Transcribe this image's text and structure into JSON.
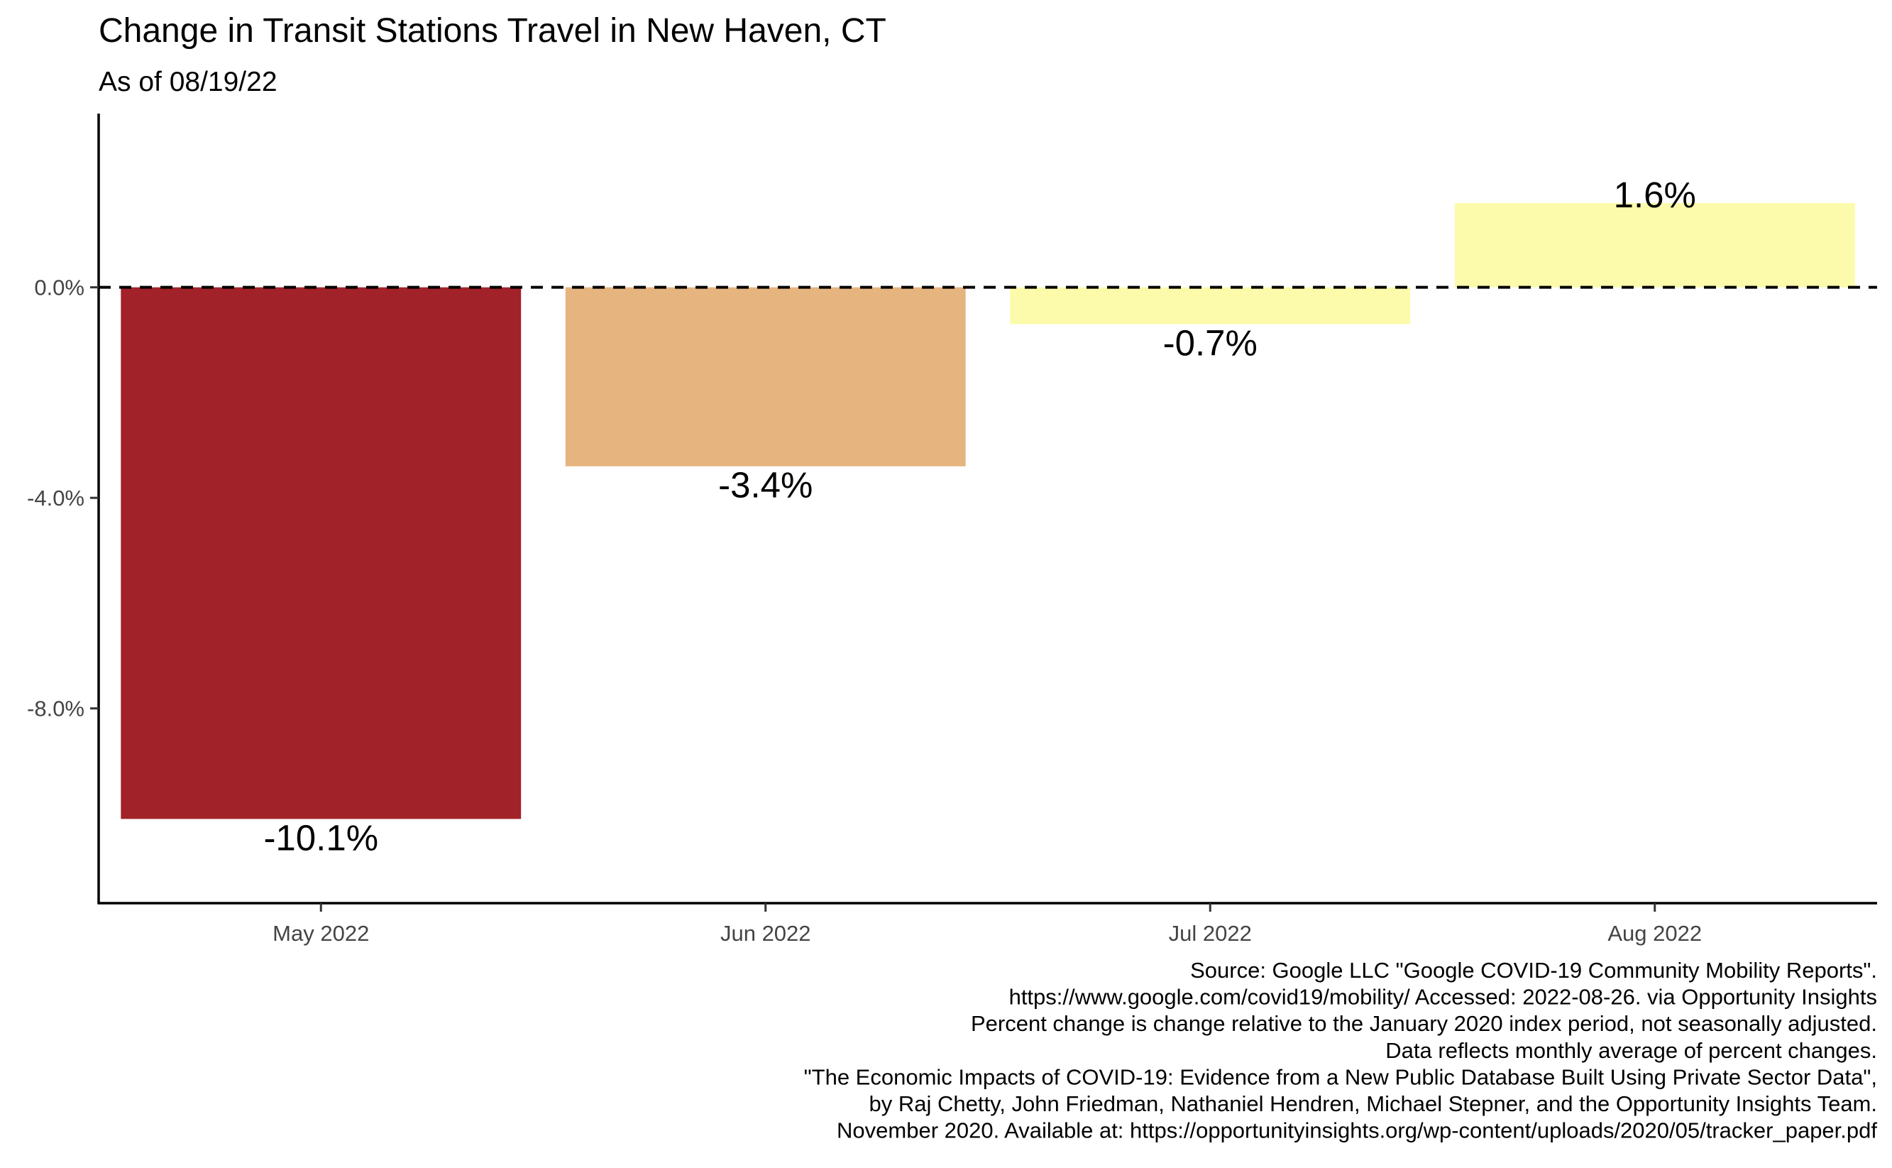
{
  "chart_data": {
    "type": "bar",
    "title": "Change in Transit Stations Travel in New Haven, CT",
    "subtitle": "As of 08/19/22",
    "xlabel": "",
    "ylabel": "",
    "categories": [
      "May 2022",
      "Jun 2022",
      "Jul 2022",
      "Aug 2022"
    ],
    "values": [
      -10.1,
      -3.4,
      -0.7,
      1.6
    ],
    "data_labels": [
      "-10.1%",
      "-3.4%",
      "-0.7%",
      "1.6%"
    ],
    "colors": [
      "#a12228",
      "#e6b47f",
      "#fbfbab",
      "#fbfbab"
    ],
    "ylim": [
      -11.7,
      3.3
    ],
    "yticks": [
      0,
      -4,
      -8
    ],
    "ytick_labels": [
      "0.0%",
      "-4.0%",
      "-8.0%"
    ],
    "reference_line": {
      "y": 0,
      "style": "dashed"
    },
    "grid": false,
    "legend": "none",
    "caption": [
      "Source: Google LLC \"Google COVID-19 Community Mobility Reports\".",
      "https://www.google.com/covid19/mobility/ Accessed: 2022-08-26. via Opportunity Insights",
      "Percent change is change relative to the January 2020 index period, not seasonally adjusted.",
      "Data reflects monthly average of percent changes.",
      "\"The Economic Impacts of COVID-19: Evidence from a New Public Database Built Using Private Sector Data\",",
      "by Raj Chetty, John Friedman, Nathaniel Hendren, Michael Stepner, and the Opportunity Insights Team.",
      "November 2020. Available at: https://opportunityinsights.org/wp-content/uploads/2020/05/tracker_paper.pdf"
    ]
  }
}
